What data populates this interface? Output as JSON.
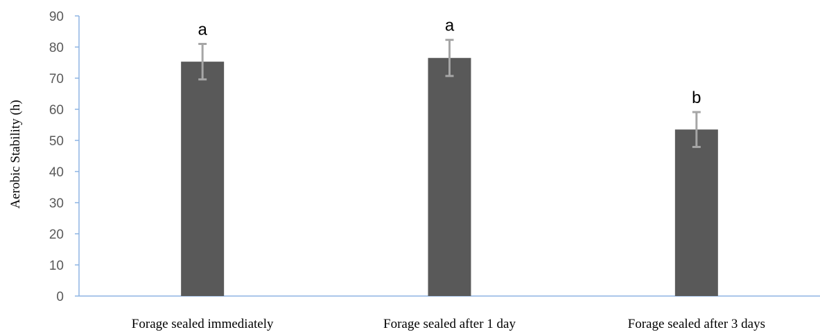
{
  "chart_data": {
    "type": "bar",
    "categories": [
      "Forage sealed immediately",
      "Forage sealed after 1 day",
      "Forage sealed after 3 days"
    ],
    "values": [
      75.3,
      76.5,
      53.5
    ],
    "errors": [
      5.7,
      5.8,
      5.6
    ],
    "significance_letters": [
      "a",
      "a",
      "b"
    ],
    "title": "",
    "xlabel": "",
    "ylabel": "Aerobic Stability (h)",
    "ylim": [
      0,
      90
    ],
    "yticks": [
      0,
      10,
      20,
      30,
      40,
      50,
      60,
      70,
      80,
      90
    ],
    "grid": false,
    "legend": "none",
    "colors": {
      "bar": "#595959",
      "error_bar": "#a6a6a6",
      "axis": "#8eb4e3",
      "tick_text": "#595959"
    }
  }
}
